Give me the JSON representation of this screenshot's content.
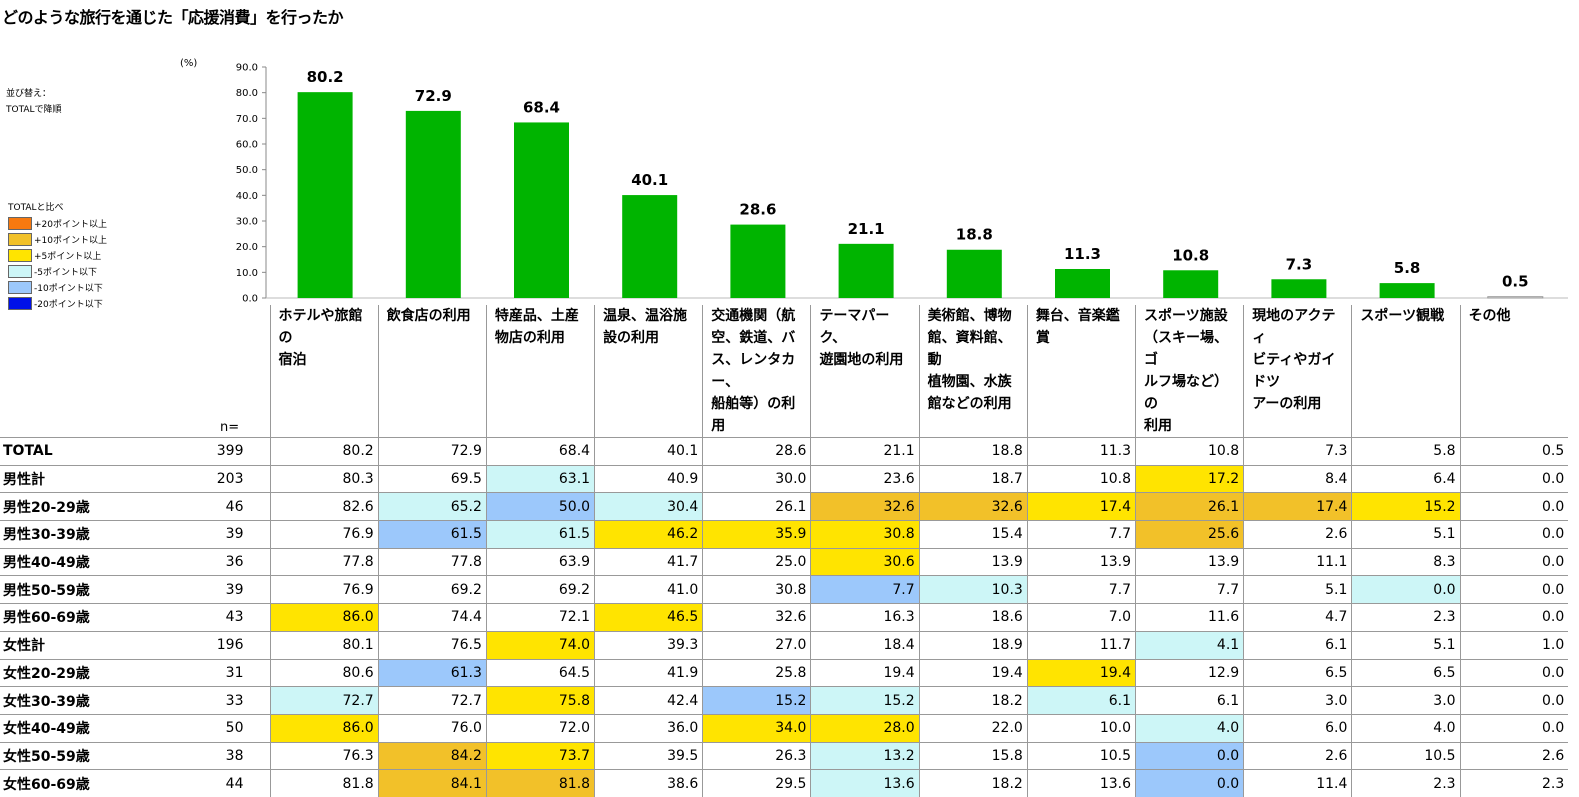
{
  "title": "どのような旅行を通じた「応援消費」を行ったか",
  "sort_label": [
    "並び替え：",
    "TOTALで降順"
  ],
  "unit": "(%)",
  "legend": {
    "title": "TOTALと比べ",
    "items": [
      {
        "label": "+20ポイント以上",
        "color": "#f7790f"
      },
      {
        "label": "+10ポイント以上",
        "color": "#f2c129"
      },
      {
        "label": "+5ポイント以上",
        "color": "#ffe400"
      },
      {
        "label": "-5ポイント以下",
        "color": "#cdf6f7"
      },
      {
        "label": "-10ポイント以下",
        "color": "#9cc8fb"
      },
      {
        "label": "-20ポイント以下",
        "color": "#0011e8"
      }
    ]
  },
  "chart_data": {
    "type": "bar",
    "categories": [
      "ホテルや旅館の宿泊",
      "飲食店の利用",
      "特産品、土産物店の利用",
      "温泉、温浴施設の利用",
      "交通機関（航空、鉄道、バス、レンタカー、船舶等）の利用",
      "テーマパーク、遊園地の利用",
      "美術館、博物館、資料館、動植物園、水族館などの利用",
      "舞台、音楽鑑賞",
      "スポーツ施設（スキー場、ゴルフ場など）の利用",
      "現地のアクティビティやガイドツアーの利用",
      "スポーツ観戦",
      "その他"
    ],
    "values": [
      80.2,
      72.9,
      68.4,
      40.1,
      28.6,
      21.1,
      18.8,
      11.3,
      10.8,
      7.3,
      5.8,
      0.5
    ],
    "ylim": [
      0,
      90
    ],
    "yticks": [
      "0.0",
      "10.0",
      "20.0",
      "30.0",
      "40.0",
      "50.0",
      "60.0",
      "70.0",
      "80.0",
      "90.0"
    ],
    "bar_color": "#00b400",
    "other_bar_color": "#ffffff"
  },
  "table": {
    "n_label": "n=",
    "columns": [
      "ホテルや旅館の\n宿泊",
      "飲食店の利用",
      "特産品、土産\n物店の利用",
      "温泉、温浴施\n設の利用",
      "交通機関（航\n空、鉄道、バ\nス、レンタカー、\n船舶等）の利\n用",
      "テーマパーク、\n遊園地の利用",
      "美術館、博物\n館、資料館、動\n植物園、水族\n館などの利用",
      "舞台、音楽鑑\n賞",
      "スポーツ施設\n（スキー場、ゴ\nルフ場など）の\n利用",
      "現地のアクティ\nビティやガイドツ\nアーの利用",
      "スポーツ観戦",
      "その他"
    ],
    "rows": [
      {
        "label": "TOTAL",
        "n": "399",
        "values": [
          "80.2",
          "72.9",
          "68.4",
          "40.1",
          "28.6",
          "21.1",
          "18.8",
          "11.3",
          "10.8",
          "7.3",
          "5.8",
          "0.5"
        ],
        "colors": [
          "",
          "",
          "",
          "",
          "",
          "",
          "",
          "",
          "",
          "",
          "",
          ""
        ]
      },
      {
        "label": "男性計",
        "n": "203",
        "values": [
          "80.3",
          "69.5",
          "63.1",
          "40.9",
          "30.0",
          "23.6",
          "18.7",
          "10.8",
          "17.2",
          "8.4",
          "6.4",
          "0.0"
        ],
        "colors": [
          "",
          "",
          "u5",
          "",
          "",
          "",
          "",
          "",
          "o5",
          "",
          "",
          ""
        ]
      },
      {
        "label": "男性20-29歳",
        "n": "46",
        "values": [
          "82.6",
          "65.2",
          "50.0",
          "30.4",
          "26.1",
          "32.6",
          "32.6",
          "17.4",
          "26.1",
          "17.4",
          "15.2",
          "0.0"
        ],
        "colors": [
          "",
          "u5",
          "u10",
          "u5",
          "",
          "o10",
          "o10",
          "o5",
          "o10",
          "o10",
          "o5",
          ""
        ]
      },
      {
        "label": "男性30-39歳",
        "n": "39",
        "values": [
          "76.9",
          "61.5",
          "61.5",
          "46.2",
          "35.9",
          "30.8",
          "15.4",
          "7.7",
          "25.6",
          "2.6",
          "5.1",
          "0.0"
        ],
        "colors": [
          "",
          "u10",
          "u5",
          "o5",
          "o5",
          "o5",
          "",
          "",
          "o10",
          "",
          "",
          ""
        ]
      },
      {
        "label": "男性40-49歳",
        "n": "36",
        "values": [
          "77.8",
          "77.8",
          "63.9",
          "41.7",
          "25.0",
          "30.6",
          "13.9",
          "13.9",
          "13.9",
          "11.1",
          "8.3",
          "0.0"
        ],
        "colors": [
          "",
          "",
          "",
          "",
          "",
          "o5",
          "",
          "",
          "",
          "",
          "",
          ""
        ]
      },
      {
        "label": "男性50-59歳",
        "n": "39",
        "values": [
          "76.9",
          "69.2",
          "69.2",
          "41.0",
          "30.8",
          "7.7",
          "10.3",
          "7.7",
          "7.7",
          "5.1",
          "0.0",
          "0.0"
        ],
        "colors": [
          "",
          "",
          "",
          "",
          "",
          "u10",
          "u5",
          "",
          "",
          "",
          "u5",
          ""
        ]
      },
      {
        "label": "男性60-69歳",
        "n": "43",
        "values": [
          "86.0",
          "74.4",
          "72.1",
          "46.5",
          "32.6",
          "16.3",
          "18.6",
          "7.0",
          "11.6",
          "4.7",
          "2.3",
          "0.0"
        ],
        "colors": [
          "o5",
          "",
          "",
          "o5",
          "",
          "",
          "",
          "",
          "",
          "",
          "",
          ""
        ]
      },
      {
        "label": "女性計",
        "n": "196",
        "values": [
          "80.1",
          "76.5",
          "74.0",
          "39.3",
          "27.0",
          "18.4",
          "18.9",
          "11.7",
          "4.1",
          "6.1",
          "5.1",
          "1.0"
        ],
        "colors": [
          "",
          "",
          "o5",
          "",
          "",
          "",
          "",
          "",
          "u5",
          "",
          "",
          ""
        ]
      },
      {
        "label": "女性20-29歳",
        "n": "31",
        "values": [
          "80.6",
          "61.3",
          "64.5",
          "41.9",
          "25.8",
          "19.4",
          "19.4",
          "19.4",
          "12.9",
          "6.5",
          "6.5",
          "0.0"
        ],
        "colors": [
          "",
          "u10",
          "",
          "",
          "",
          "",
          "",
          "o5",
          "",
          "",
          "",
          ""
        ]
      },
      {
        "label": "女性30-39歳",
        "n": "33",
        "values": [
          "72.7",
          "72.7",
          "75.8",
          "42.4",
          "15.2",
          "15.2",
          "18.2",
          "6.1",
          "6.1",
          "3.0",
          "3.0",
          "0.0"
        ],
        "colors": [
          "u5",
          "",
          "o5",
          "",
          "u10",
          "u5",
          "",
          "u5",
          "",
          "",
          "",
          ""
        ]
      },
      {
        "label": "女性40-49歳",
        "n": "50",
        "values": [
          "86.0",
          "76.0",
          "72.0",
          "36.0",
          "34.0",
          "28.0",
          "22.0",
          "10.0",
          "4.0",
          "6.0",
          "4.0",
          "0.0"
        ],
        "colors": [
          "o5",
          "",
          "",
          "",
          "o5",
          "o5",
          "",
          "",
          "u5",
          "",
          "",
          ""
        ]
      },
      {
        "label": "女性50-59歳",
        "n": "38",
        "values": [
          "76.3",
          "84.2",
          "73.7",
          "39.5",
          "26.3",
          "13.2",
          "15.8",
          "10.5",
          "0.0",
          "2.6",
          "10.5",
          "2.6"
        ],
        "colors": [
          "",
          "o10",
          "o5",
          "",
          "",
          "u5",
          "",
          "",
          "u10",
          "",
          "",
          ""
        ]
      },
      {
        "label": "女性60-69歳",
        "n": "44",
        "values": [
          "81.8",
          "84.1",
          "81.8",
          "38.6",
          "29.5",
          "13.6",
          "18.2",
          "13.6",
          "0.0",
          "11.4",
          "2.3",
          "2.3"
        ],
        "colors": [
          "",
          "o10",
          "o10",
          "",
          "",
          "u5",
          "",
          "",
          "u10",
          "",
          "",
          ""
        ]
      }
    ]
  }
}
